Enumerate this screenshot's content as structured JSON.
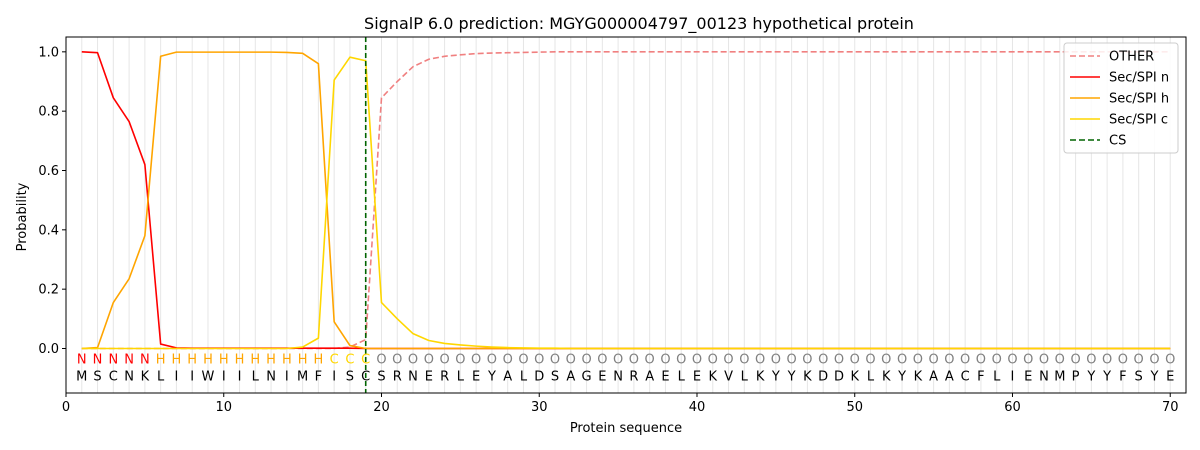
{
  "chart_data": {
    "type": "line",
    "title": "SignalP 6.0 prediction: MGYG000004797_00123 hypothetical protein",
    "xlabel": "Protein sequence",
    "ylabel": "Probability",
    "xlim": [
      0,
      71
    ],
    "ylim": [
      -0.15,
      1.05
    ],
    "xticks": [
      0,
      10,
      20,
      30,
      40,
      50,
      60,
      70
    ],
    "yticks": [
      0.0,
      0.2,
      0.4,
      0.6,
      0.8,
      1.0
    ],
    "xtick_labels": [
      "0",
      "10",
      "20",
      "30",
      "40",
      "50",
      "60",
      "70"
    ],
    "ytick_labels": [
      "0.0",
      "0.2",
      "0.4",
      "0.6",
      "0.8",
      "1.0"
    ],
    "legend_position": "top-right",
    "grid": "vertical lines at each residue",
    "sequence": [
      "M",
      "S",
      "C",
      "N",
      "K",
      "L",
      "I",
      "I",
      "W",
      "I",
      "I",
      "L",
      "N",
      "I",
      "M",
      "F",
      "I",
      "S",
      "C",
      "S",
      "R",
      "N",
      "E",
      "R",
      "L",
      "E",
      "Y",
      "A",
      "L",
      "D",
      "S",
      "A",
      "G",
      "E",
      "N",
      "R",
      "A",
      "E",
      "L",
      "E",
      "K",
      "V",
      "L",
      "K",
      "Y",
      "Y",
      "K",
      "D",
      "D",
      "K",
      "L",
      "K",
      "Y",
      "K",
      "A",
      "A",
      "C",
      "F",
      "L",
      "I",
      "E",
      "N",
      "M",
      "P",
      "Y",
      "Y",
      "F",
      "S",
      "Y",
      "E"
    ],
    "region_labels": [
      "N",
      "N",
      "N",
      "N",
      "N",
      "H",
      "H",
      "H",
      "H",
      "H",
      "H",
      "H",
      "H",
      "H",
      "H",
      "H",
      "C",
      "C",
      "C",
      "O",
      "O",
      "O",
      "O",
      "O",
      "O",
      "O",
      "O",
      "O",
      "O",
      "O",
      "O",
      "O",
      "O",
      "O",
      "O",
      "O",
      "O",
      "O",
      "O",
      "O",
      "O",
      "O",
      "O",
      "O",
      "O",
      "O",
      "O",
      "O",
      "O",
      "O",
      "O",
      "O",
      "O",
      "O",
      "O",
      "O",
      "O",
      "O",
      "O",
      "O",
      "O",
      "O",
      "O",
      "O",
      "O",
      "O",
      "O",
      "O",
      "O",
      "O"
    ],
    "region_colors": {
      "N": "#ff0000",
      "H": "#ffa500",
      "C": "#ffd700",
      "O": "#808080"
    },
    "x": [
      1,
      2,
      3,
      4,
      5,
      6,
      7,
      8,
      9,
      10,
      11,
      12,
      13,
      14,
      15,
      16,
      17,
      18,
      19,
      20,
      21,
      22,
      23,
      24,
      25,
      26,
      27,
      28,
      29,
      30,
      31,
      32,
      33,
      34,
      35,
      36,
      37,
      38,
      39,
      40,
      41,
      42,
      43,
      44,
      45,
      46,
      47,
      48,
      49,
      50,
      51,
      52,
      53,
      54,
      55,
      56,
      57,
      58,
      59,
      60,
      61,
      62,
      63,
      64,
      65,
      66,
      67,
      68,
      69,
      70
    ],
    "series": [
      {
        "name": "OTHER",
        "color": "#f08080",
        "style": "dashed",
        "values": [
          0,
          0,
          0,
          0,
          0,
          0,
          0,
          0,
          0,
          0,
          0,
          0,
          0,
          0,
          0,
          0,
          0,
          0.005,
          0.03,
          0.845,
          0.9,
          0.95,
          0.975,
          0.985,
          0.99,
          0.994,
          0.996,
          0.997,
          0.998,
          0.999,
          1,
          1,
          1,
          1,
          1,
          1,
          1,
          1,
          1,
          1,
          1,
          1,
          1,
          1,
          1,
          1,
          1,
          1,
          1,
          1,
          1,
          1,
          1,
          1,
          1,
          1,
          1,
          1,
          1,
          1,
          1,
          1,
          1,
          1,
          1,
          1,
          1,
          1,
          1,
          1
        ]
      },
      {
        "name": "Sec/SPI n",
        "color": "#ff0000",
        "style": "solid",
        "values": [
          1.0,
          0.997,
          0.845,
          0.765,
          0.62,
          0.015,
          0.002,
          0.001,
          0.001,
          0.001,
          0.001,
          0.001,
          0.001,
          0.001,
          0.001,
          0.001,
          0.001,
          0.001,
          0,
          0,
          0,
          0,
          0,
          0,
          0,
          0,
          0,
          0,
          0,
          0,
          0,
          0,
          0,
          0,
          0,
          0,
          0,
          0,
          0,
          0,
          0,
          0,
          0,
          0,
          0,
          0,
          0,
          0,
          0,
          0,
          0,
          0,
          0,
          0,
          0,
          0,
          0,
          0,
          0,
          0,
          0,
          0,
          0,
          0,
          0,
          0,
          0,
          0,
          0,
          0
        ]
      },
      {
        "name": "Sec/SPI h",
        "color": "#ffa500",
        "style": "solid",
        "values": [
          0,
          0.003,
          0.155,
          0.235,
          0.38,
          0.985,
          0.999,
          0.999,
          0.999,
          0.999,
          0.999,
          0.999,
          0.999,
          0.998,
          0.995,
          0.96,
          0.09,
          0.01,
          0,
          0,
          0,
          0,
          0,
          0,
          0,
          0,
          0,
          0,
          0,
          0,
          0,
          0,
          0,
          0,
          0,
          0,
          0,
          0,
          0,
          0,
          0,
          0,
          0,
          0,
          0,
          0,
          0,
          0,
          0,
          0,
          0,
          0,
          0,
          0,
          0,
          0,
          0,
          0,
          0,
          0,
          0,
          0,
          0,
          0,
          0,
          0,
          0,
          0,
          0,
          0
        ]
      },
      {
        "name": "Sec/SPI c",
        "color": "#ffd700",
        "style": "solid",
        "values": [
          0,
          0,
          0,
          0,
          0,
          0,
          0,
          0,
          0,
          0,
          0,
          0,
          0,
          0,
          0.005,
          0.035,
          0.905,
          0.982,
          0.97,
          0.155,
          0.1,
          0.05,
          0.027,
          0.017,
          0.012,
          0.008,
          0.005,
          0.003,
          0.002,
          0.001,
          0.001,
          0,
          0,
          0,
          0,
          0,
          0,
          0,
          0,
          0,
          0,
          0,
          0,
          0,
          0,
          0,
          0,
          0,
          0,
          0,
          0,
          0,
          0,
          0,
          0,
          0,
          0,
          0,
          0,
          0,
          0,
          0,
          0,
          0,
          0,
          0,
          0,
          0,
          0,
          0
        ]
      }
    ],
    "cs": {
      "name": "CS",
      "x": 19,
      "color": "#006400",
      "style": "dashed"
    },
    "legend": [
      "OTHER",
      "Sec/SPI n",
      "Sec/SPI h",
      "Sec/SPI c",
      "CS"
    ]
  }
}
